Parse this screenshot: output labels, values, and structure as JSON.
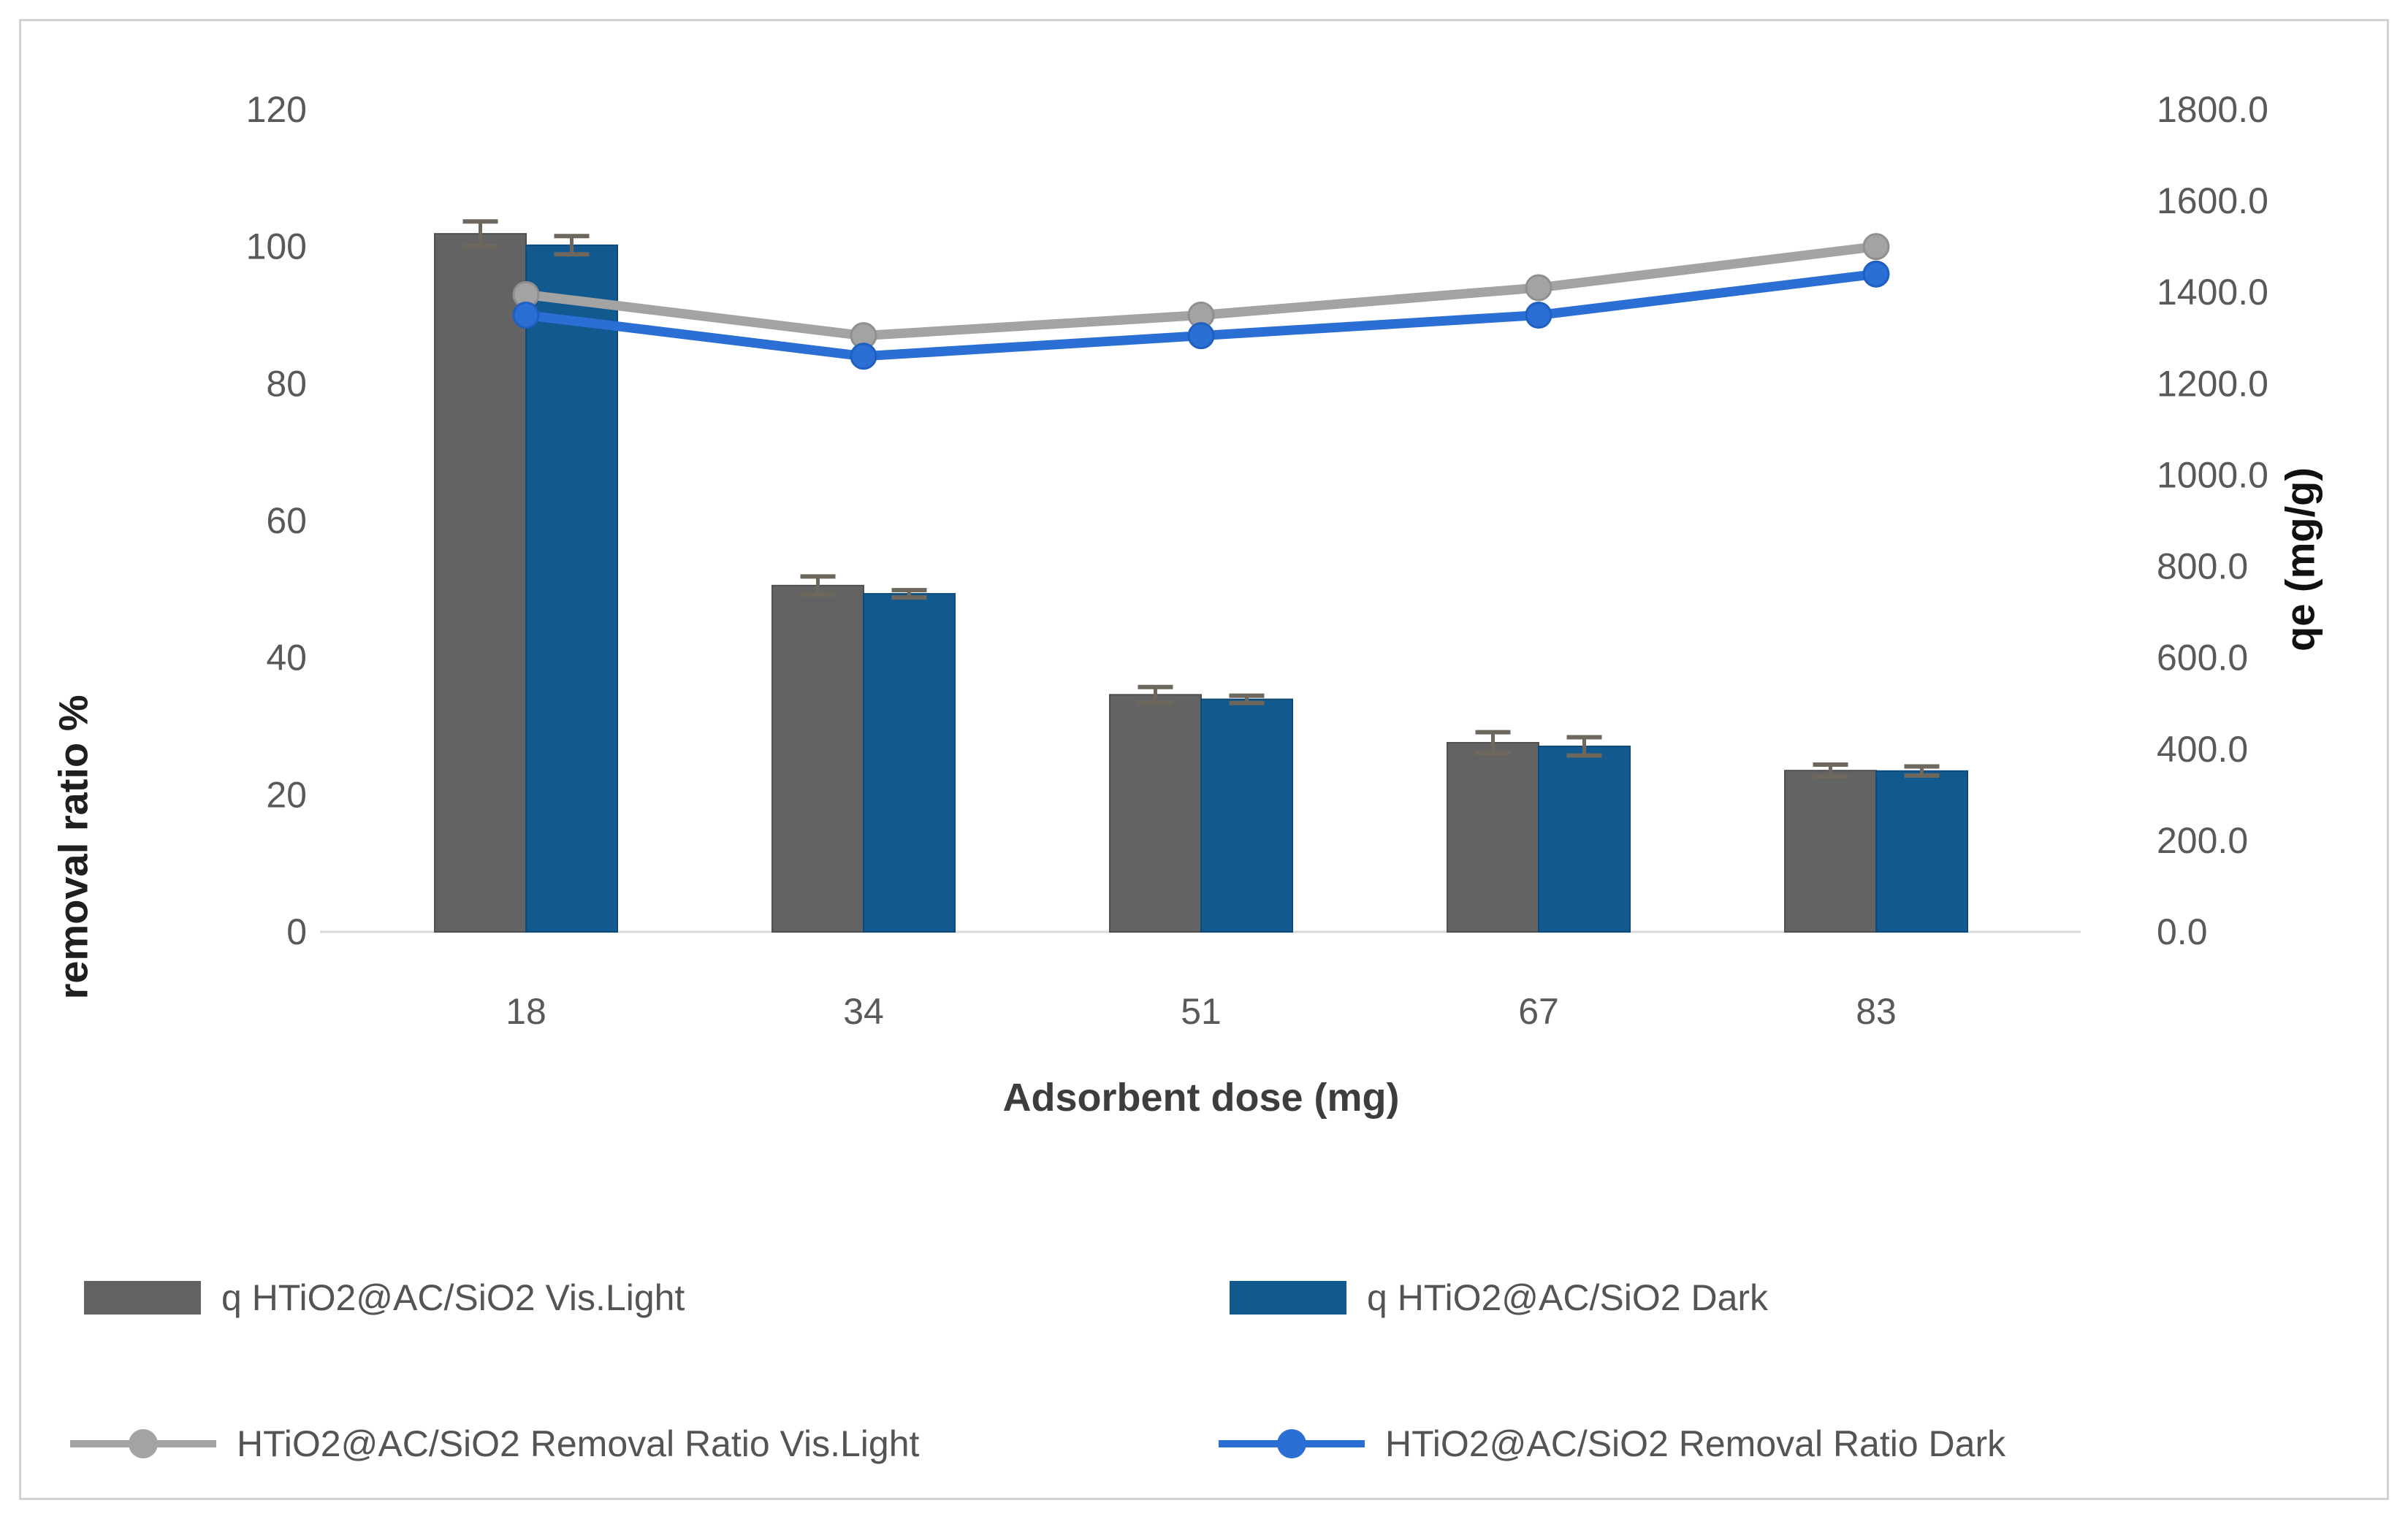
{
  "chart_data": {
    "type": "bar",
    "subtype": "combo-bar-line-dual-axis",
    "categories": [
      "18",
      "34",
      "51",
      "67",
      "83"
    ],
    "xlabel": "Adsorbent dose (mg)",
    "left_axis": {
      "title": "removal ratio %",
      "min": 0,
      "max": 120,
      "step": 20,
      "ticks": [
        "0",
        "20",
        "40",
        "60",
        "80",
        "100",
        "120"
      ]
    },
    "right_axis": {
      "title": "qe (mg/g)",
      "min": 0,
      "max": 1800,
      "step": 200,
      "ticks": [
        "0.0",
        "200.0",
        "400.0",
        "600.0",
        "800.0",
        "1000.0",
        "1200.0",
        "1400.0",
        "1600.0",
        "1800.0"
      ]
    },
    "grid": false,
    "legend_position": "bottom",
    "bar_series": [
      {
        "name": "q HTiO2@AC/SiO2 Vis.Light",
        "axis": "right",
        "color": "#636363",
        "edge_color": "#4f4f4f",
        "values": [
          1528,
          758,
          519,
          414,
          353
        ],
        "errors": [
          27,
          20,
          17,
          23,
          13
        ]
      },
      {
        "name": "q HTiO2@AC/SiO2 Dark",
        "axis": "right",
        "color": "#12598f",
        "edge_color": "#0d4a79",
        "values": [
          1503,
          740,
          509,
          406,
          352
        ],
        "errors": [
          20,
          8,
          8,
          20,
          10
        ]
      }
    ],
    "line_series": [
      {
        "name": "HTiO2@AC/SiO2 Removal Ratio Vis.Light",
        "axis": "left",
        "color": "#a3a3a3",
        "marker_edge": "#8f8f8f",
        "values": [
          93,
          87,
          90,
          94,
          100
        ]
      },
      {
        "name": "HTiO2@AC/SiO2 Removal Ratio Dark",
        "axis": "left",
        "color": "#2b6fd4",
        "marker_edge": "#1f5fc0",
        "values": [
          90,
          84,
          87,
          90,
          96
        ]
      }
    ],
    "error_bar_color": "#6e675e",
    "axis_line_color": "#d9d9d9",
    "tick_color": "#595959"
  }
}
